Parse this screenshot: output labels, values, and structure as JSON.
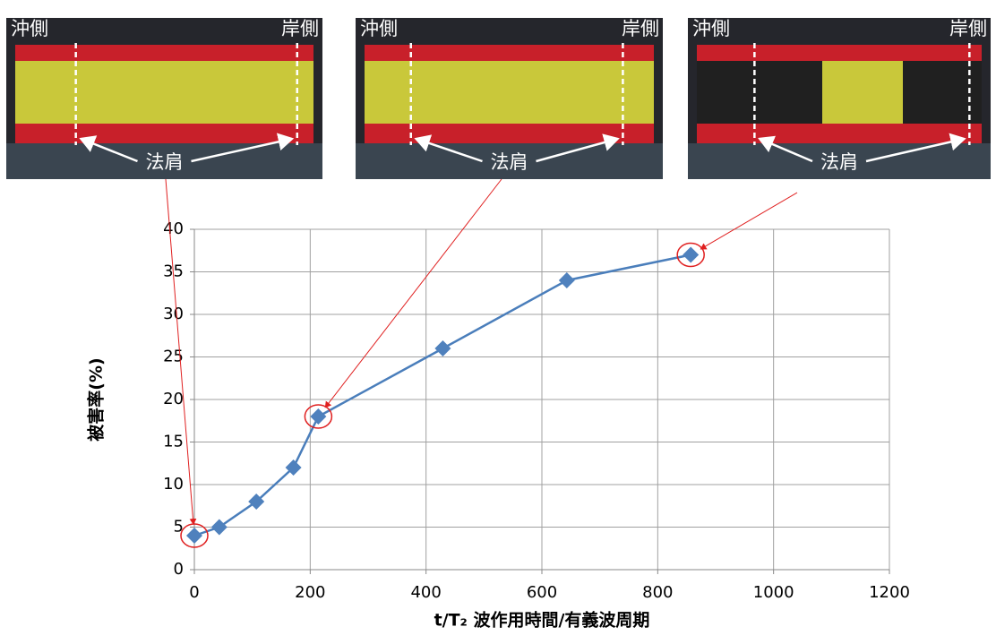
{
  "photos": [
    {
      "left": "沖側",
      "right": "岸側",
      "label": "法肩"
    },
    {
      "left": "沖側",
      "right": "岸側",
      "label": "法肩"
    },
    {
      "left": "沖側",
      "right": "岸側",
      "label": "法肩"
    }
  ],
  "chart_data": {
    "type": "line",
    "x": [
      0,
      43,
      107,
      171,
      214,
      429,
      643,
      857
    ],
    "values": [
      4,
      5,
      8,
      12,
      18,
      26,
      34,
      37
    ],
    "color": "#4a7ebb",
    "marker_color": "#4f81bd",
    "highlighted_points": [
      0,
      4,
      7
    ],
    "highlight_color": "#e02020",
    "xlabel": "t/T₂  波作用時間/有義波周期",
    "ylabel": "被害率(%)",
    "xlim": [
      0,
      1200
    ],
    "xticks": [
      0,
      200,
      400,
      600,
      800,
      1000,
      1200
    ],
    "ylim": [
      0,
      40
    ],
    "yticks": [
      0,
      5,
      10,
      15,
      20,
      25,
      30,
      35,
      40
    ],
    "grid": true
  }
}
